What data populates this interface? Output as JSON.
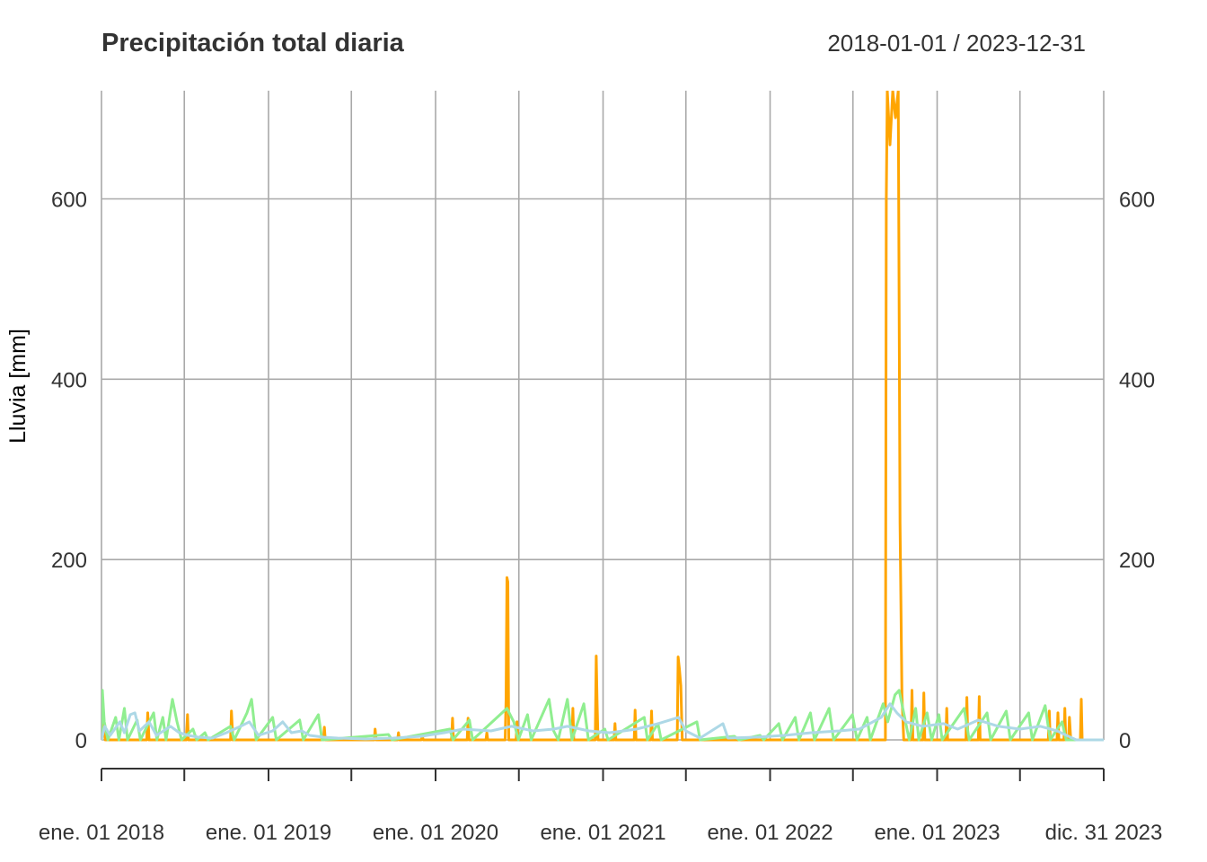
{
  "chart_data": {
    "type": "line",
    "title": "Precipitación total diaria",
    "date_range": "2018-01-01 / 2023-12-31",
    "ylabel": "Lluvia [mm]",
    "xlabel": "",
    "ylim": [
      0,
      720
    ],
    "xlim": [
      "2018-01-01",
      "2023-12-31"
    ],
    "y_ticks": [
      0,
      200,
      400,
      600
    ],
    "x_tick_labels": [
      {
        "date": "2018-01-01",
        "label": "ene. 01 2018"
      },
      {
        "date": "2019-01-01",
        "label": "ene. 01 2019"
      },
      {
        "date": "2020-01-01",
        "label": "ene. 01 2020"
      },
      {
        "date": "2021-01-01",
        "label": "ene. 01 2021"
      },
      {
        "date": "2022-01-01",
        "label": "ene. 01 2022"
      },
      {
        "date": "2023-01-01",
        "label": "ene. 01 2023"
      },
      {
        "date": "2023-12-31",
        "label": "dic. 31 2023"
      }
    ],
    "grid": true,
    "colors": {
      "series_1": "#FFA500",
      "series_2": "#90EE90",
      "series_3": "#ADD8E6",
      "grid": "#A9A9A9",
      "text": "#333333"
    },
    "series": [
      {
        "color": "#FFA500",
        "points": [
          [
            "2018-01-01",
            0
          ],
          [
            "2018-01-05",
            25
          ],
          [
            "2018-01-09",
            0
          ],
          [
            "2018-04-10",
            0
          ],
          [
            "2018-04-12",
            30
          ],
          [
            "2018-04-15",
            0
          ],
          [
            "2018-07-05",
            0
          ],
          [
            "2018-07-08",
            28
          ],
          [
            "2018-07-10",
            0
          ],
          [
            "2018-10-10",
            0
          ],
          [
            "2018-10-12",
            32
          ],
          [
            "2018-10-15",
            0
          ],
          [
            "2019-05-01",
            0
          ],
          [
            "2019-05-03",
            14
          ],
          [
            "2019-05-05",
            0
          ],
          [
            "2019-08-20",
            0
          ],
          [
            "2019-08-22",
            12
          ],
          [
            "2019-08-24",
            0
          ],
          [
            "2019-10-10",
            0
          ],
          [
            "2019-10-12",
            8
          ],
          [
            "2019-10-14",
            0
          ],
          [
            "2019-12-01",
            0
          ],
          [
            "2019-12-03",
            5
          ],
          [
            "2019-12-05",
            0
          ],
          [
            "2020-02-05",
            0
          ],
          [
            "2020-02-07",
            24
          ],
          [
            "2020-02-09",
            0
          ],
          [
            "2020-03-10",
            0
          ],
          [
            "2020-03-12",
            24
          ],
          [
            "2020-03-14",
            0
          ],
          [
            "2020-04-20",
            0
          ],
          [
            "2020-04-22",
            8
          ],
          [
            "2020-04-24",
            0
          ],
          [
            "2020-06-01",
            0
          ],
          [
            "2020-06-03",
            45
          ],
          [
            "2020-06-05",
            180
          ],
          [
            "2020-06-07",
            175
          ],
          [
            "2020-06-09",
            0
          ],
          [
            "2020-06-25",
            0
          ],
          [
            "2020-06-27",
            20
          ],
          [
            "2020-06-29",
            0
          ],
          [
            "2020-10-25",
            0
          ],
          [
            "2020-10-27",
            35
          ],
          [
            "2020-10-29",
            0
          ],
          [
            "2020-12-15",
            0
          ],
          [
            "2020-12-17",
            93
          ],
          [
            "2020-12-19",
            40
          ],
          [
            "2020-12-21",
            0
          ],
          [
            "2021-01-25",
            0
          ],
          [
            "2021-01-27",
            18
          ],
          [
            "2021-01-29",
            0
          ],
          [
            "2021-03-10",
            0
          ],
          [
            "2021-03-12",
            33
          ],
          [
            "2021-03-14",
            0
          ],
          [
            "2021-04-15",
            0
          ],
          [
            "2021-04-17",
            32
          ],
          [
            "2021-04-19",
            0
          ],
          [
            "2021-06-12",
            0
          ],
          [
            "2021-06-14",
            92
          ],
          [
            "2021-06-17",
            78
          ],
          [
            "2021-06-20",
            60
          ],
          [
            "2021-06-23",
            0
          ],
          [
            "2022-09-10",
            0
          ],
          [
            "2022-09-12",
            600
          ],
          [
            "2022-09-14",
            720
          ],
          [
            "2022-09-20",
            660
          ],
          [
            "2022-09-26",
            720
          ],
          [
            "2022-10-02",
            690
          ],
          [
            "2022-10-08",
            720
          ],
          [
            "2022-10-12",
            240
          ],
          [
            "2022-10-16",
            50
          ],
          [
            "2022-10-20",
            0
          ],
          [
            "2022-11-05",
            0
          ],
          [
            "2022-11-07",
            55
          ],
          [
            "2022-11-09",
            0
          ],
          [
            "2022-12-01",
            0
          ],
          [
            "2022-12-03",
            52
          ],
          [
            "2022-12-05",
            0
          ],
          [
            "2023-01-20",
            0
          ],
          [
            "2023-01-22",
            35
          ],
          [
            "2023-01-24",
            0
          ],
          [
            "2023-03-05",
            0
          ],
          [
            "2023-03-07",
            47
          ],
          [
            "2023-03-09",
            0
          ],
          [
            "2023-04-01",
            0
          ],
          [
            "2023-04-03",
            48
          ],
          [
            "2023-04-05",
            0
          ],
          [
            "2023-09-01",
            0
          ],
          [
            "2023-09-03",
            32
          ],
          [
            "2023-09-05",
            0
          ],
          [
            "2023-09-20",
            0
          ],
          [
            "2023-09-22",
            30
          ],
          [
            "2023-09-24",
            0
          ],
          [
            "2023-10-05",
            0
          ],
          [
            "2023-10-07",
            35
          ],
          [
            "2023-10-09",
            0
          ],
          [
            "2023-10-15",
            0
          ],
          [
            "2023-10-17",
            25
          ],
          [
            "2023-10-20",
            0
          ],
          [
            "2023-11-10",
            0
          ],
          [
            "2023-11-12",
            45
          ],
          [
            "2023-11-14",
            0
          ],
          [
            "2023-12-20",
            0
          ],
          [
            "2023-12-31",
            0
          ]
        ]
      },
      {
        "color": "#90EE90",
        "points": [
          [
            "2018-01-01",
            0
          ],
          [
            "2018-01-03",
            55
          ],
          [
            "2018-01-07",
            20
          ],
          [
            "2018-01-15",
            0
          ],
          [
            "2018-02-01",
            25
          ],
          [
            "2018-02-08",
            0
          ],
          [
            "2018-02-20",
            35
          ],
          [
            "2018-02-27",
            0
          ],
          [
            "2018-03-20",
            22
          ],
          [
            "2018-03-27",
            0
          ],
          [
            "2018-04-25",
            30
          ],
          [
            "2018-05-02",
            0
          ],
          [
            "2018-05-15",
            25
          ],
          [
            "2018-05-22",
            0
          ],
          [
            "2018-06-05",
            45
          ],
          [
            "2018-06-15",
            20
          ],
          [
            "2018-06-25",
            0
          ],
          [
            "2018-07-20",
            12
          ],
          [
            "2018-07-28",
            0
          ],
          [
            "2018-08-15",
            8
          ],
          [
            "2018-08-22",
            0
          ],
          [
            "2018-10-10",
            15
          ],
          [
            "2018-10-18",
            0
          ],
          [
            "2018-11-15",
            30
          ],
          [
            "2018-11-25",
            45
          ],
          [
            "2018-12-05",
            0
          ],
          [
            "2019-01-10",
            25
          ],
          [
            "2019-01-18",
            0
          ],
          [
            "2019-03-10",
            22
          ],
          [
            "2019-03-18",
            0
          ],
          [
            "2019-04-20",
            28
          ],
          [
            "2019-04-28",
            0
          ],
          [
            "2019-09-20",
            6
          ],
          [
            "2019-09-28",
            0
          ],
          [
            "2020-02-01",
            12
          ],
          [
            "2020-02-08",
            0
          ],
          [
            "2020-03-15",
            22
          ],
          [
            "2020-03-22",
            0
          ],
          [
            "2020-06-05",
            35
          ],
          [
            "2020-06-20",
            20
          ],
          [
            "2020-06-30",
            0
          ],
          [
            "2020-07-20",
            28
          ],
          [
            "2020-07-28",
            0
          ],
          [
            "2020-09-05",
            45
          ],
          [
            "2020-09-15",
            10
          ],
          [
            "2020-09-25",
            0
          ],
          [
            "2020-10-15",
            45
          ],
          [
            "2020-10-25",
            0
          ],
          [
            "2020-11-20",
            40
          ],
          [
            "2020-11-30",
            0
          ],
          [
            "2021-01-05",
            12
          ],
          [
            "2021-01-12",
            0
          ],
          [
            "2021-04-01",
            25
          ],
          [
            "2021-04-08",
            0
          ],
          [
            "2021-05-01",
            18
          ],
          [
            "2021-05-08",
            0
          ],
          [
            "2021-07-25",
            20
          ],
          [
            "2021-08-01",
            0
          ],
          [
            "2021-10-15",
            4
          ],
          [
            "2021-10-25",
            0
          ],
          [
            "2021-12-10",
            5
          ],
          [
            "2021-12-18",
            0
          ],
          [
            "2022-01-20",
            18
          ],
          [
            "2022-01-28",
            0
          ],
          [
            "2022-02-25",
            25
          ],
          [
            "2022-03-05",
            0
          ],
          [
            "2022-03-30",
            30
          ],
          [
            "2022-04-08",
            0
          ],
          [
            "2022-05-10",
            35
          ],
          [
            "2022-05-20",
            0
          ],
          [
            "2022-06-30",
            28
          ],
          [
            "2022-07-10",
            0
          ],
          [
            "2022-08-01",
            25
          ],
          [
            "2022-08-08",
            0
          ],
          [
            "2022-09-05",
            40
          ],
          [
            "2022-09-15",
            20
          ],
          [
            "2022-10-01",
            50
          ],
          [
            "2022-10-10",
            55
          ],
          [
            "2022-10-20",
            30
          ],
          [
            "2022-11-01",
            0
          ],
          [
            "2022-11-15",
            35
          ],
          [
            "2022-11-22",
            0
          ],
          [
            "2022-12-10",
            30
          ],
          [
            "2022-12-20",
            0
          ],
          [
            "2023-01-05",
            28
          ],
          [
            "2023-01-12",
            0
          ],
          [
            "2023-03-01",
            35
          ],
          [
            "2023-03-12",
            0
          ],
          [
            "2023-04-20",
            30
          ],
          [
            "2023-04-28",
            0
          ],
          [
            "2023-06-01",
            32
          ],
          [
            "2023-06-10",
            0
          ],
          [
            "2023-07-20",
            30
          ],
          [
            "2023-07-28",
            0
          ],
          [
            "2023-08-25",
            38
          ],
          [
            "2023-09-05",
            0
          ],
          [
            "2023-10-01",
            20
          ],
          [
            "2023-10-10",
            0
          ],
          [
            "2023-12-31",
            0
          ]
        ]
      },
      {
        "color": "#ADD8E6",
        "points": [
          [
            "2018-01-01",
            0
          ],
          [
            "2018-01-08",
            15
          ],
          [
            "2018-01-20",
            5
          ],
          [
            "2018-02-10",
            20
          ],
          [
            "2018-02-20",
            8
          ],
          [
            "2018-03-05",
            28
          ],
          [
            "2018-03-15",
            30
          ],
          [
            "2018-03-25",
            10
          ],
          [
            "2018-04-15",
            20
          ],
          [
            "2018-05-01",
            5
          ],
          [
            "2018-06-01",
            15
          ],
          [
            "2018-06-20",
            8
          ],
          [
            "2018-07-10",
            5
          ],
          [
            "2018-08-01",
            3
          ],
          [
            "2018-09-01",
            2
          ],
          [
            "2018-10-01",
            8
          ],
          [
            "2018-11-01",
            15
          ],
          [
            "2018-11-20",
            20
          ],
          [
            "2018-12-10",
            5
          ],
          [
            "2019-01-10",
            10
          ],
          [
            "2019-02-01",
            20
          ],
          [
            "2019-02-20",
            8
          ],
          [
            "2019-03-15",
            10
          ],
          [
            "2019-04-01",
            5
          ],
          [
            "2019-05-01",
            3
          ],
          [
            "2019-06-01",
            2
          ],
          [
            "2019-08-01",
            1
          ],
          [
            "2019-10-01",
            2
          ],
          [
            "2019-12-01",
            4
          ],
          [
            "2020-01-20",
            8
          ],
          [
            "2020-03-01",
            12
          ],
          [
            "2020-05-01",
            10
          ],
          [
            "2020-06-15",
            15
          ],
          [
            "2020-08-01",
            10
          ],
          [
            "2020-09-15",
            12
          ],
          [
            "2020-10-15",
            15
          ],
          [
            "2020-12-01",
            10
          ],
          [
            "2021-01-15",
            8
          ],
          [
            "2021-02-15",
            10
          ],
          [
            "2021-03-15",
            12
          ],
          [
            "2021-05-01",
            18
          ],
          [
            "2021-06-15",
            25
          ],
          [
            "2021-07-01",
            10
          ],
          [
            "2021-08-01",
            2
          ],
          [
            "2021-09-20",
            18
          ],
          [
            "2021-10-01",
            2
          ],
          [
            "2021-12-01",
            3
          ],
          [
            "2022-02-01",
            5
          ],
          [
            "2022-04-01",
            8
          ],
          [
            "2022-06-01",
            10
          ],
          [
            "2022-07-15",
            12
          ],
          [
            "2022-09-01",
            25
          ],
          [
            "2022-09-20",
            40
          ],
          [
            "2022-10-05",
            30
          ],
          [
            "2022-10-25",
            20
          ],
          [
            "2022-12-01",
            15
          ],
          [
            "2023-01-15",
            18
          ],
          [
            "2023-02-15",
            12
          ],
          [
            "2023-04-01",
            22
          ],
          [
            "2023-05-15",
            15
          ],
          [
            "2023-07-01",
            12
          ],
          [
            "2023-08-15",
            15
          ],
          [
            "2023-09-20",
            10
          ],
          [
            "2023-10-15",
            4
          ],
          [
            "2023-11-01",
            0
          ],
          [
            "2023-12-31",
            0
          ]
        ]
      }
    ]
  }
}
